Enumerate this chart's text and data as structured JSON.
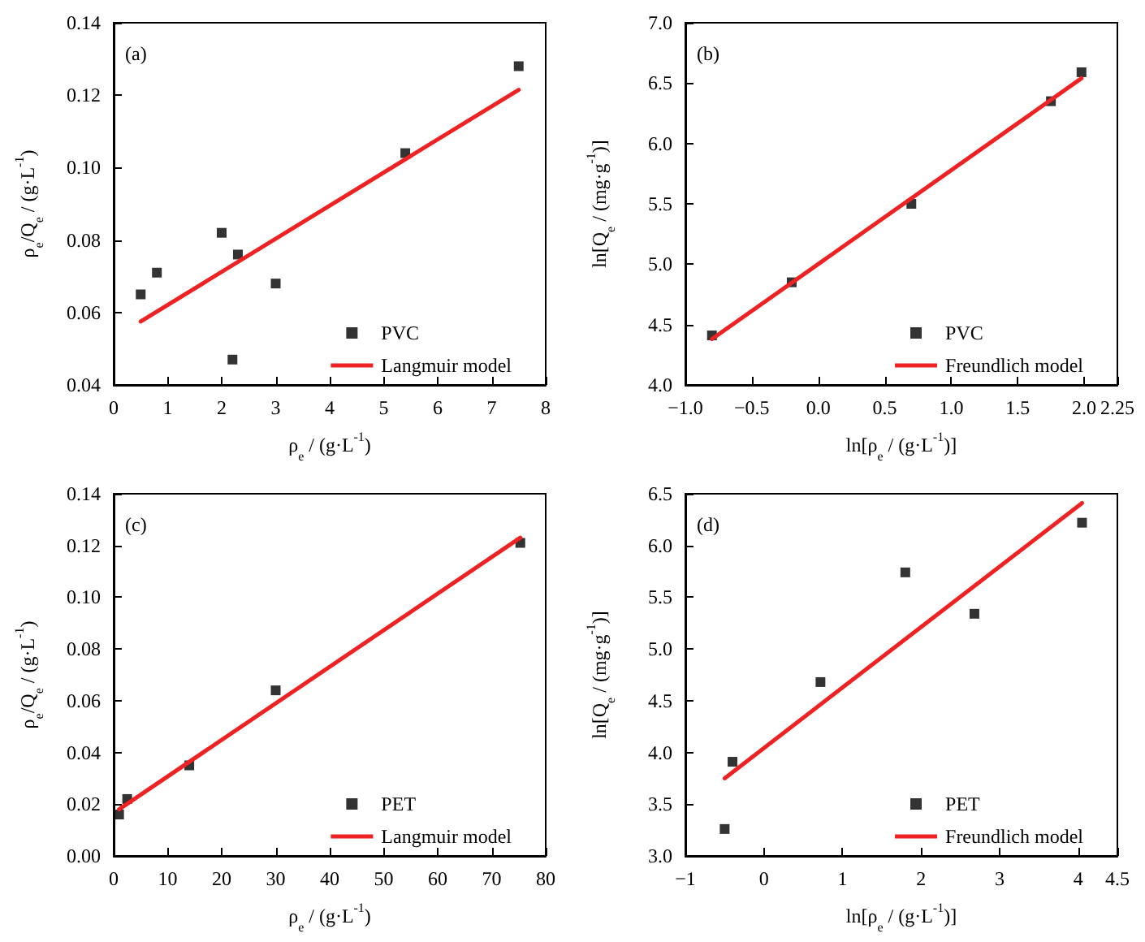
{
  "chart_data": [
    {
      "type": "scatter",
      "title": "(a)",
      "xlabel": "ρ$_{e}$ / (g·L$^{-1}$)",
      "ylabel": "ρ$_{e}$/Q$_{e}$ / (g·L$^{-1}$)",
      "legend": "bottom right",
      "xlim": [
        0,
        8
      ],
      "xticks": [
        0,
        1,
        2,
        3,
        4,
        5,
        6,
        7,
        8
      ],
      "ylim": [
        0.04,
        0.14
      ],
      "yticks": [
        {
          "value": 0.04,
          "label": "0.04"
        },
        {
          "value": 0.06,
          "label": "0.06"
        },
        {
          "value": 0.08,
          "label": "0.08"
        },
        {
          "value": 0.1,
          "label": "0.10"
        },
        {
          "value": 0.12,
          "label": "0.12"
        },
        {
          "value": 0.14,
          "label": "0.14"
        }
      ],
      "series": [
        {
          "name": "PVC",
          "marker": "square",
          "color": "#000000",
          "x": [
            0.5,
            0.8,
            2.0,
            2.2,
            2.3,
            3.0,
            5.4,
            7.5
          ],
          "values": [
            0.065,
            0.071,
            0.082,
            0.047,
            0.076,
            0.068,
            0.104,
            0.128
          ]
        },
        {
          "name": "Langmuir model",
          "type": "line",
          "marker": "none",
          "color": "#ee2222",
          "x": [
            0.5,
            7.5
          ],
          "values": [
            0.0575,
            0.1215
          ]
        }
      ]
    },
    {
      "type": "scatter",
      "title": "(b)",
      "xlabel": "ln[ρ$_{e}$ / (g·L$^{-1}$)]",
      "ylabel": "ln[Q$_{e}$ / (mg·g$^{-1}$)]",
      "legend": "bottom right",
      "xlim": [
        -1,
        2.25
      ],
      "xticks": [
        {
          "value": -1,
          "label": "−1.0"
        },
        {
          "value": -0.5,
          "label": "−0.5"
        },
        {
          "value": 0,
          "label": "0.0"
        },
        {
          "value": 0.5,
          "label": "0.5"
        },
        {
          "value": 1,
          "label": "1.0"
        },
        {
          "value": 1.5,
          "label": "1.5"
        },
        {
          "value": 2,
          "label": "2.0"
        },
        2.25
      ],
      "ylim": [
        4,
        7
      ],
      "yticks": [
        {
          "value": 4,
          "label": "4.0"
        },
        4.5,
        {
          "value": 5,
          "label": "5.0"
        },
        5.5,
        {
          "value": 6,
          "label": "6.0"
        },
        6.5,
        {
          "value": 7,
          "label": "7.0"
        }
      ],
      "series": [
        {
          "name": "PVC",
          "marker": "square",
          "color": "#000000",
          "x": [
            -0.8,
            -0.2,
            0.7,
            1.75,
            1.98
          ],
          "values": [
            4.41,
            4.85,
            5.5,
            6.35,
            6.59
          ]
        },
        {
          "name": "Freundlich model",
          "type": "line",
          "marker": "none",
          "color": "#ee2222",
          "x": [
            -0.8,
            1.98
          ],
          "values": [
            4.38,
            6.54
          ]
        }
      ]
    },
    {
      "type": "scatter",
      "title": "(c)",
      "xlabel": "ρ$_{e}$ / (g·L$^{-1}$)",
      "ylabel": "ρ$_{e}$/Q$_{e}$ / (g·L$^{-1}$)",
      "legend": "bottom right",
      "xlim": [
        0,
        80
      ],
      "xticks": [
        0,
        10,
        20,
        30,
        40,
        50,
        60,
        70,
        80
      ],
      "ylim": [
        0,
        0.14
      ],
      "yticks": [
        {
          "value": 0,
          "label": "0.00"
        },
        {
          "value": 0.02,
          "label": "0.02"
        },
        {
          "value": 0.04,
          "label": "0.04"
        },
        {
          "value": 0.06,
          "label": "0.06"
        },
        {
          "value": 0.08,
          "label": "0.08"
        },
        {
          "value": 0.1,
          "label": "0.10"
        },
        {
          "value": 0.12,
          "label": "0.12"
        },
        {
          "value": 0.14,
          "label": "0.14"
        }
      ],
      "series": [
        {
          "name": "PET",
          "marker": "square",
          "color": "#000000",
          "x": [
            1,
            2.5,
            14,
            30,
            75.3
          ],
          "values": [
            0.016,
            0.022,
            0.035,
            0.064,
            0.121
          ]
        },
        {
          "name": "Langmuir model",
          "type": "line",
          "marker": "none",
          "color": "#ee2222",
          "x": [
            1,
            75.3
          ],
          "values": [
            0.018,
            0.123
          ]
        }
      ]
    },
    {
      "type": "scatter",
      "title": "(d)",
      "xlabel": "ln[ρ$_{e}$ / (g·L$^{-1}$)]",
      "ylabel": "ln[Q$_{e}$ / (mg·g$^{-1}$)]",
      "legend": "bottom right",
      "xlim": [
        -1,
        4.5
      ],
      "xticks": [
        {
          "value": -1,
          "label": "−1"
        },
        0,
        1,
        2,
        3,
        4,
        4.5
      ],
      "ylim": [
        3,
        6.5
      ],
      "yticks": [
        {
          "value": 3,
          "label": "3.0"
        },
        3.5,
        {
          "value": 4,
          "label": "4.0"
        },
        4.5,
        {
          "value": 5,
          "label": "5.0"
        },
        5.5,
        {
          "value": 6,
          "label": "6.0"
        },
        6.5
      ],
      "series": [
        {
          "name": "PET",
          "marker": "square",
          "color": "#000000",
          "x": [
            -0.5,
            -0.4,
            0.72,
            1.8,
            2.68,
            4.05
          ],
          "values": [
            3.26,
            3.91,
            4.68,
            5.74,
            5.34,
            6.22
          ]
        },
        {
          "name": "Freundlich model",
          "type": "line",
          "marker": "none",
          "color": "#ee2222",
          "x": [
            -0.5,
            4.05
          ],
          "values": [
            3.75,
            6.41
          ]
        }
      ]
    }
  ]
}
